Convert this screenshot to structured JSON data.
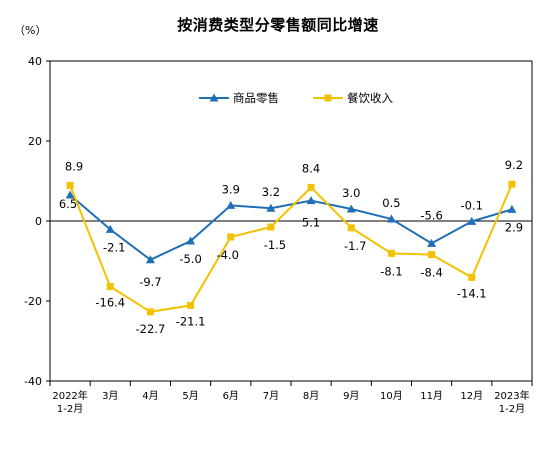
{
  "chart_data": {
    "type": "line",
    "title": "按消费类型分零售额同比增速",
    "ylabel": "（%）",
    "ylim": [
      -40,
      40
    ],
    "yticks": [
      -40,
      -20,
      0,
      20,
      40
    ],
    "categories": [
      [
        "2022年",
        "1-2月"
      ],
      [
        "3月"
      ],
      [
        "4月"
      ],
      [
        "5月"
      ],
      [
        "6月"
      ],
      [
        "7月"
      ],
      [
        "8月"
      ],
      [
        "9月"
      ],
      [
        "10月"
      ],
      [
        "11月"
      ],
      [
        "12月"
      ],
      [
        "2023年",
        "1-2月"
      ]
    ],
    "series": [
      {
        "name": "商品零售",
        "color": "#1f6fb4",
        "marker": "triangle",
        "values": [
          6.5,
          -2.1,
          -9.7,
          -5.0,
          3.9,
          3.2,
          5.1,
          3.0,
          0.5,
          -5.6,
          -0.1,
          2.9
        ],
        "labels": [
          "6.5",
          "-2.1",
          "-9.7",
          "-5.0",
          "3.9",
          "3.2",
          "5.1",
          "3.0",
          "0.5",
          "-5.6",
          "-0.1",
          "2.9"
        ]
      },
      {
        "name": "餐饮收入",
        "color": "#f2c200",
        "marker": "square",
        "values": [
          8.9,
          -16.4,
          -22.7,
          -21.1,
          -4.0,
          -1.5,
          8.4,
          -1.7,
          -8.1,
          -8.4,
          -14.1,
          9.2
        ],
        "labels": [
          "8.9",
          "-16.4",
          "-22.7",
          "-21.1",
          "-4.0",
          "-1.5",
          "8.4",
          "-1.7",
          "-8.1",
          "-8.4",
          "-14.1",
          "9.2"
        ]
      }
    ],
    "legend": "top-center",
    "grid": false
  }
}
